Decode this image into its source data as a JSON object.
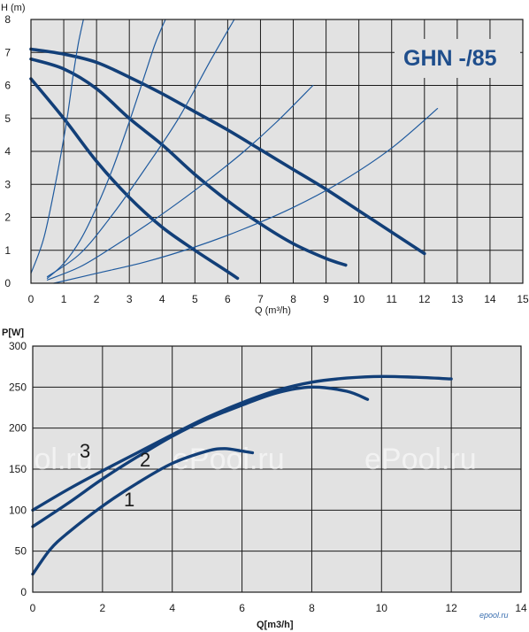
{
  "colors": {
    "plot_bg": "#e2e2e2",
    "grid": "#1a1a1a",
    "curve_thick": "#123f78",
    "curve_thin": "#1f5a9e",
    "title_color": "#1f4e8c"
  },
  "chart_data": [
    {
      "type": "line",
      "title": "GHN -/85",
      "ylabel": "H (m)",
      "xlabel": "Q (m³/h)",
      "xlim": [
        0,
        15
      ],
      "ylim": [
        0,
        8
      ],
      "xticks": [
        "0",
        "1",
        "2",
        "3",
        "4",
        "5",
        "6",
        "7",
        "8",
        "9",
        "10",
        "11",
        "12",
        "13",
        "14",
        "15"
      ],
      "yticks": [
        "0",
        "1",
        "2",
        "3",
        "4",
        "5",
        "6",
        "7",
        "8"
      ],
      "grid": true,
      "series": [
        {
          "style": "thick",
          "x": [
            0,
            1,
            2,
            3,
            4,
            5,
            6,
            6.3
          ],
          "y": [
            6.2,
            5.0,
            3.7,
            2.6,
            1.7,
            1.0,
            0.35,
            0.15
          ]
        },
        {
          "style": "thick",
          "x": [
            0,
            1,
            2,
            3,
            4,
            5,
            6,
            7,
            8,
            9,
            9.6
          ],
          "y": [
            6.8,
            6.5,
            5.9,
            5.0,
            4.2,
            3.3,
            2.5,
            1.8,
            1.2,
            0.75,
            0.55
          ]
        },
        {
          "style": "thick",
          "x": [
            0,
            1,
            2,
            3,
            4,
            5,
            6,
            7,
            8,
            9,
            10,
            11,
            12
          ],
          "y": [
            7.1,
            6.95,
            6.7,
            6.25,
            5.75,
            5.2,
            4.65,
            4.05,
            3.45,
            2.85,
            2.2,
            1.55,
            0.9
          ]
        },
        {
          "style": "thin",
          "x": [
            0,
            0.4,
            0.8,
            1.1,
            1.3,
            1.45,
            1.6
          ],
          "y": [
            0.3,
            1.4,
            3.3,
            5.0,
            6.4,
            7.3,
            8.0
          ]
        },
        {
          "style": "thin",
          "x": [
            0.5,
            1.0,
            1.5,
            2.0,
            2.5,
            3.0,
            3.5,
            3.8,
            4.1
          ],
          "y": [
            0.15,
            0.6,
            1.3,
            2.3,
            3.5,
            4.9,
            6.4,
            7.3,
            8.0
          ]
        },
        {
          "style": "thin",
          "x": [
            0.5,
            1.5,
            2.5,
            3.5,
            4.5,
            5.5,
            6.2
          ],
          "y": [
            0.2,
            0.9,
            2.1,
            3.5,
            5.0,
            6.8,
            8.0
          ]
        },
        {
          "style": "thin",
          "x": [
            0.5,
            1.5,
            2.5,
            3.5,
            4.5,
            5.5,
            6.5,
            7.5,
            8.6
          ],
          "y": [
            0.1,
            0.5,
            1.1,
            1.75,
            2.45,
            3.2,
            4.0,
            4.9,
            6.0
          ]
        },
        {
          "style": "thin",
          "x": [
            0.7,
            2,
            3.5,
            5,
            6.5,
            8,
            9.5,
            11,
            12.4
          ],
          "y": [
            0.0,
            0.3,
            0.65,
            1.1,
            1.65,
            2.3,
            3.1,
            4.1,
            5.3
          ]
        }
      ]
    },
    {
      "type": "line",
      "title": "",
      "ylabel": "P[W]",
      "xlabel": "Q[m3/h]",
      "xlim": [
        0,
        14
      ],
      "ylim": [
        0,
        300
      ],
      "xticks": [
        "0",
        "2",
        "4",
        "6",
        "8",
        "10",
        "12",
        "14"
      ],
      "yticks": [
        "0",
        "50",
        "100",
        "150",
        "200",
        "250",
        "300"
      ],
      "grid": true,
      "series": [
        {
          "name": "1",
          "x": [
            0,
            0.5,
            1,
            2,
            3,
            4,
            5,
            5.5,
            6,
            6.3
          ],
          "y": [
            22,
            52,
            72,
            105,
            133,
            157,
            172,
            175,
            172,
            170
          ]
        },
        {
          "name": "2",
          "x": [
            0,
            1,
            2,
            3,
            4,
            5,
            6,
            7,
            8,
            9,
            9.6
          ],
          "y": [
            80,
            108,
            138,
            165,
            190,
            211,
            228,
            243,
            250,
            245,
            235
          ]
        },
        {
          "name": "3",
          "x": [
            0,
            1,
            2,
            3,
            4,
            5,
            6,
            7,
            8,
            9,
            10,
            11,
            12
          ],
          "y": [
            100,
            125,
            148,
            170,
            192,
            213,
            231,
            246,
            256,
            261,
            263,
            262,
            260
          ]
        }
      ],
      "annotations": [
        "1",
        "2",
        "3"
      ]
    }
  ],
  "watermarks": [
    "ePool.ru",
    "ePool.ru",
    "ePool.ru"
  ],
  "logo": "epool.ru"
}
